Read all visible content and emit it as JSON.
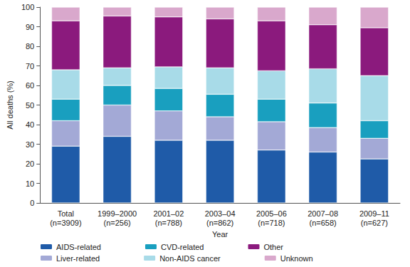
{
  "chart_data": {
    "type": "bar",
    "stacked": true,
    "grid": false,
    "x_label": "Year",
    "y_label": "All deaths (%)",
    "categories": [
      "Total\n(n=3909)",
      "1999–2000\n(n=256)",
      "2001–02\n(n=788)",
      "2003–04\n(n=862)",
      "2005–06\n(n=718)",
      "2007–08\n(n=658)",
      "2009–11\n(n=627)"
    ],
    "ylim": [
      0,
      100
    ],
    "yticks": [
      0,
      10,
      20,
      30,
      40,
      50,
      60,
      70,
      80,
      90,
      100
    ],
    "legend": "bottom",
    "series": [
      {
        "name": "AIDS-related",
        "color": "#1f5ba8",
        "values": [
          29,
          34,
          32,
          32,
          27,
          26,
          22.5
        ]
      },
      {
        "name": "Liver-related",
        "color": "#a3a9d6",
        "values": [
          13,
          16,
          15,
          12,
          14.5,
          12.5,
          10.5
        ]
      },
      {
        "name": "CVD-related",
        "color": "#199fbf",
        "values": [
          11,
          10,
          11.5,
          11.5,
          11.5,
          12.5,
          9
        ]
      },
      {
        "name": "Non-AIDS cancer",
        "color": "#a8dbe8",
        "values": [
          15,
          9,
          11,
          13.5,
          14.5,
          17.5,
          23
        ]
      },
      {
        "name": "Other",
        "color": "#8b1a7d",
        "values": [
          25,
          26.5,
          25.5,
          25,
          25.5,
          22.5,
          24.5
        ]
      },
      {
        "name": "Unknown",
        "color": "#d9a8cc",
        "values": [
          7,
          4.5,
          5,
          6,
          7,
          9,
          10.5
        ]
      }
    ]
  }
}
